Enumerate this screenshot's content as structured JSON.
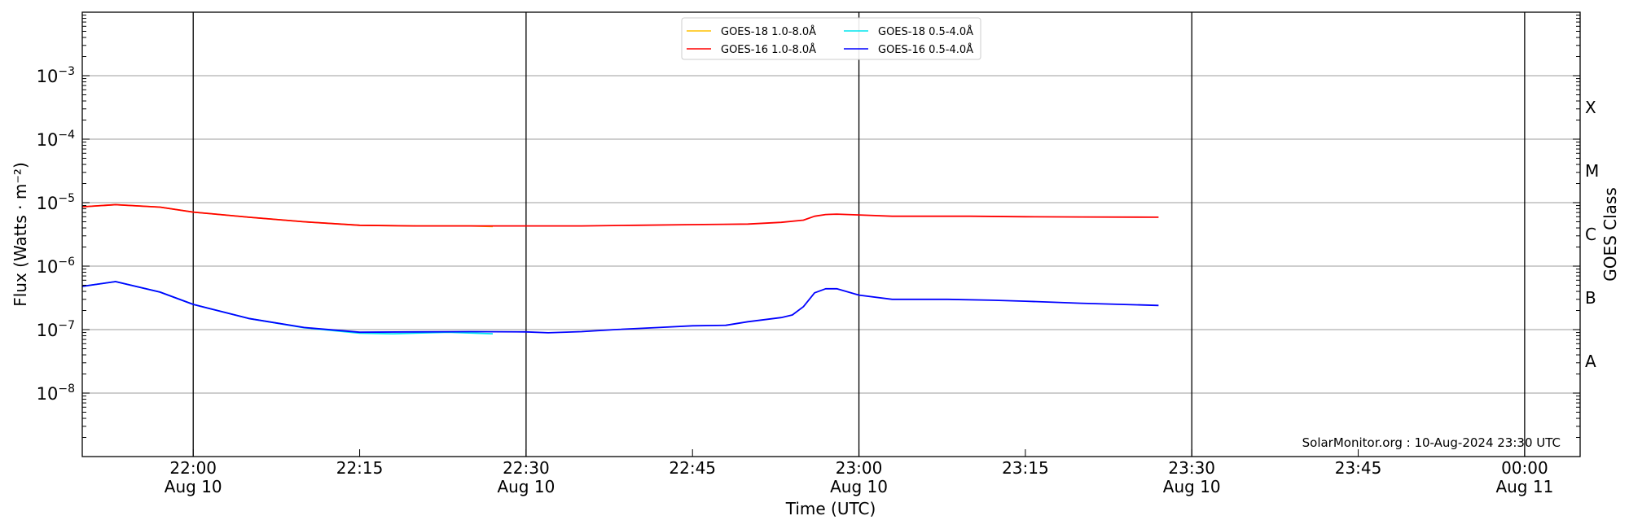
{
  "chart_data": {
    "type": "line",
    "title": "",
    "xlabel": "Time (UTC)",
    "ylabel": "Flux (Watts · m⁻²)",
    "y2label": "GOES Class",
    "yscale": "log",
    "ylim": [
      1e-09,
      0.01
    ],
    "xlim": [
      "21:50",
      "00:05"
    ],
    "grid": true,
    "legend_position": "top-center",
    "watermark": "SolarMonitor.org : 10-Aug-2024 23:30 UTC",
    "x_ticks": [
      {
        "time": "22:00",
        "label": "22:00",
        "date": "Aug 10",
        "major": true
      },
      {
        "time": "22:15",
        "label": "22:15",
        "date": "",
        "major": false
      },
      {
        "time": "22:30",
        "label": "22:30",
        "date": "Aug 10",
        "major": true
      },
      {
        "time": "22:45",
        "label": "22:45",
        "date": "",
        "major": false
      },
      {
        "time": "23:00",
        "label": "23:00",
        "date": "Aug 10",
        "major": true
      },
      {
        "time": "23:15",
        "label": "23:15",
        "date": "",
        "major": false
      },
      {
        "time": "23:30",
        "label": "23:30",
        "date": "Aug 10",
        "major": true
      },
      {
        "time": "23:45",
        "label": "23:45",
        "date": "",
        "major": false
      },
      {
        "time": "00:00",
        "label": "00:00",
        "date": "Aug 11",
        "major": true
      }
    ],
    "y_ticks": [
      {
        "value": 0.001,
        "base": "10",
        "exp": "−3"
      },
      {
        "value": 0.0001,
        "base": "10",
        "exp": "−4"
      },
      {
        "value": 1e-05,
        "base": "10",
        "exp": "−5"
      },
      {
        "value": 1e-06,
        "base": "10",
        "exp": "−6"
      },
      {
        "value": 1e-07,
        "base": "10",
        "exp": "−7"
      },
      {
        "value": 1e-08,
        "base": "10",
        "exp": "−8"
      }
    ],
    "goes_classes": [
      {
        "label": "X",
        "value": 0.000316
      },
      {
        "label": "M",
        "value": 3.16e-05
      },
      {
        "label": "C",
        "value": 3.16e-06
      },
      {
        "label": "B",
        "value": 3.16e-07
      },
      {
        "label": "A",
        "value": 3.16e-08
      }
    ],
    "series": [
      {
        "name": "GOES-18 1.0-8.0Å",
        "color": "#ffc000",
        "points": [
          [
            "21:50",
            8.6e-06
          ],
          [
            "21:53",
            9.3e-06
          ],
          [
            "21:57",
            8.5e-06
          ],
          [
            "22:00",
            7.1e-06
          ],
          [
            "22:05",
            5.9e-06
          ],
          [
            "22:10",
            5e-06
          ],
          [
            "22:15",
            4.4e-06
          ],
          [
            "22:20",
            4.3e-06
          ],
          [
            "22:25",
            4.3e-06
          ],
          [
            "22:27",
            4.2e-06
          ]
        ]
      },
      {
        "name": "GOES-18 0.5-4.0Å",
        "color": "#00e5ee",
        "points": [
          [
            "21:50",
            4.8e-07
          ],
          [
            "21:53",
            5.7e-07
          ],
          [
            "21:57",
            3.9e-07
          ],
          [
            "22:00",
            2.5e-07
          ],
          [
            "22:05",
            1.5e-07
          ],
          [
            "22:10",
            1.07e-07
          ],
          [
            "22:15",
            8.8e-08
          ],
          [
            "22:18",
            8.6e-08
          ],
          [
            "22:23",
            9.1e-08
          ],
          [
            "22:27",
            8.6e-08
          ]
        ]
      },
      {
        "name": "GOES-16 1.0-8.0Å",
        "color": "#ff0000",
        "points": [
          [
            "21:50",
            8.6e-06
          ],
          [
            "21:53",
            9.3e-06
          ],
          [
            "21:57",
            8.5e-06
          ],
          [
            "22:00",
            7.1e-06
          ],
          [
            "22:05",
            5.9e-06
          ],
          [
            "22:10",
            5e-06
          ],
          [
            "22:15",
            4.4e-06
          ],
          [
            "22:20",
            4.3e-06
          ],
          [
            "22:25",
            4.3e-06
          ],
          [
            "22:30",
            4.3e-06
          ],
          [
            "22:35",
            4.3e-06
          ],
          [
            "22:40",
            4.4e-06
          ],
          [
            "22:45",
            4.5e-06
          ],
          [
            "22:50",
            4.6e-06
          ],
          [
            "22:53",
            4.9e-06
          ],
          [
            "22:55",
            5.3e-06
          ],
          [
            "22:56",
            6.1e-06
          ],
          [
            "22:57",
            6.5e-06
          ],
          [
            "22:58",
            6.6e-06
          ],
          [
            "23:00",
            6.4e-06
          ],
          [
            "23:03",
            6.1e-06
          ],
          [
            "23:10",
            6.1e-06
          ],
          [
            "23:15",
            6e-06
          ],
          [
            "23:20",
            5.95e-06
          ],
          [
            "23:27",
            5.9e-06
          ]
        ]
      },
      {
        "name": "GOES-16 0.5-4.0Å",
        "color": "#0000ff",
        "points": [
          [
            "21:50",
            4.8e-07
          ],
          [
            "21:53",
            5.7e-07
          ],
          [
            "21:57",
            3.9e-07
          ],
          [
            "22:00",
            2.5e-07
          ],
          [
            "22:05",
            1.5e-07
          ],
          [
            "22:10",
            1.08e-07
          ],
          [
            "22:15",
            9.1e-08
          ],
          [
            "22:20",
            9.2e-08
          ],
          [
            "22:25",
            9.3e-08
          ],
          [
            "22:30",
            9.2e-08
          ],
          [
            "22:32",
            8.9e-08
          ],
          [
            "22:35",
            9.3e-08
          ],
          [
            "22:38",
            1e-07
          ],
          [
            "22:42",
            1.08e-07
          ],
          [
            "22:45",
            1.15e-07
          ],
          [
            "22:48",
            1.17e-07
          ],
          [
            "22:50",
            1.33e-07
          ],
          [
            "22:53",
            1.55e-07
          ],
          [
            "22:54",
            1.7e-07
          ],
          [
            "22:55",
            2.3e-07
          ],
          [
            "22:56",
            3.8e-07
          ],
          [
            "22:57",
            4.4e-07
          ],
          [
            "22:58",
            4.4e-07
          ],
          [
            "23:00",
            3.5e-07
          ],
          [
            "23:03",
            3e-07
          ],
          [
            "23:08",
            3e-07
          ],
          [
            "23:12",
            2.9e-07
          ],
          [
            "23:15",
            2.8e-07
          ],
          [
            "23:20",
            2.6e-07
          ],
          [
            "23:27",
            2.4e-07
          ]
        ]
      }
    ],
    "legend_order": [
      0,
      2,
      1,
      3
    ]
  }
}
